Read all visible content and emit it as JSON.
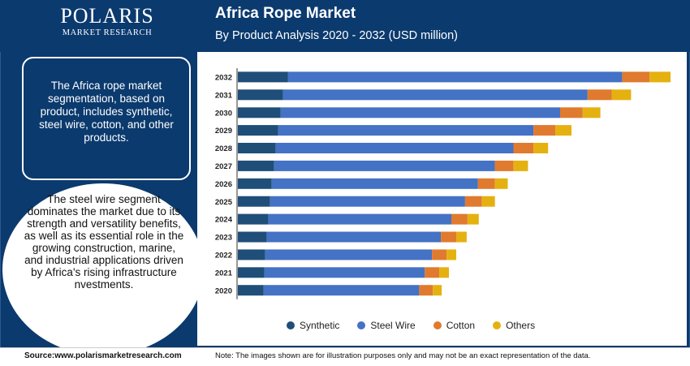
{
  "logo": {
    "name": "POLARIS",
    "sub": "MARKET RESEARCH"
  },
  "header": {
    "title": "Africa Rope Market",
    "subtitle": "By Product Analysis 2020 - 2032 (USD million)"
  },
  "left_box": {
    "text": "The Africa rope market segmentation, based on product, includes synthetic, steel wire, cotton, and other products."
  },
  "oval": {
    "text": "The steel wire segment dominates the market due to its strength and versatility benefits, as well as its essential role in the growing construction, marine, and industrial applications driven by Africa's rising infrastructure nvestments."
  },
  "footer": {
    "source": "Source:www.polarismarketresearch.com",
    "note": "Note: The images shown are for illustration purposes only and may not be an exact representation of the data."
  },
  "chart_data": {
    "type": "bar",
    "orientation": "horizontal",
    "stacked": true,
    "title": "Africa Rope Market",
    "subtitle": "By Product Analysis 2020 - 2032 (USD million)",
    "categories": [
      "2032",
      "2031",
      "2030",
      "2029",
      "2028",
      "2027",
      "2026",
      "2025",
      "2024",
      "2023",
      "2022",
      "2021",
      "2020"
    ],
    "series": [
      {
        "name": "Synthetic",
        "color": "#1f4e79",
        "values": [
          62,
          56,
          53,
          50,
          47,
          45,
          42,
          40,
          38,
          36,
          34,
          33,
          32
        ]
      },
      {
        "name": "Steel Wire",
        "color": "#4472c4",
        "values": [
          415,
          378,
          347,
          317,
          295,
          274,
          256,
          242,
          227,
          216,
          207,
          199,
          193
        ]
      },
      {
        "name": "Cotton",
        "color": "#e07a2e",
        "values": [
          34,
          30,
          28,
          27,
          25,
          23,
          21,
          21,
          20,
          19,
          18,
          18,
          17
        ]
      },
      {
        "name": "Others",
        "color": "#e5b110",
        "values": [
          26,
          24,
          22,
          20,
          18,
          18,
          16,
          16,
          14,
          13,
          12,
          12,
          11
        ]
      }
    ],
    "xlim": [
      0,
      540
    ],
    "grid": false,
    "legend_position": "bottom"
  }
}
